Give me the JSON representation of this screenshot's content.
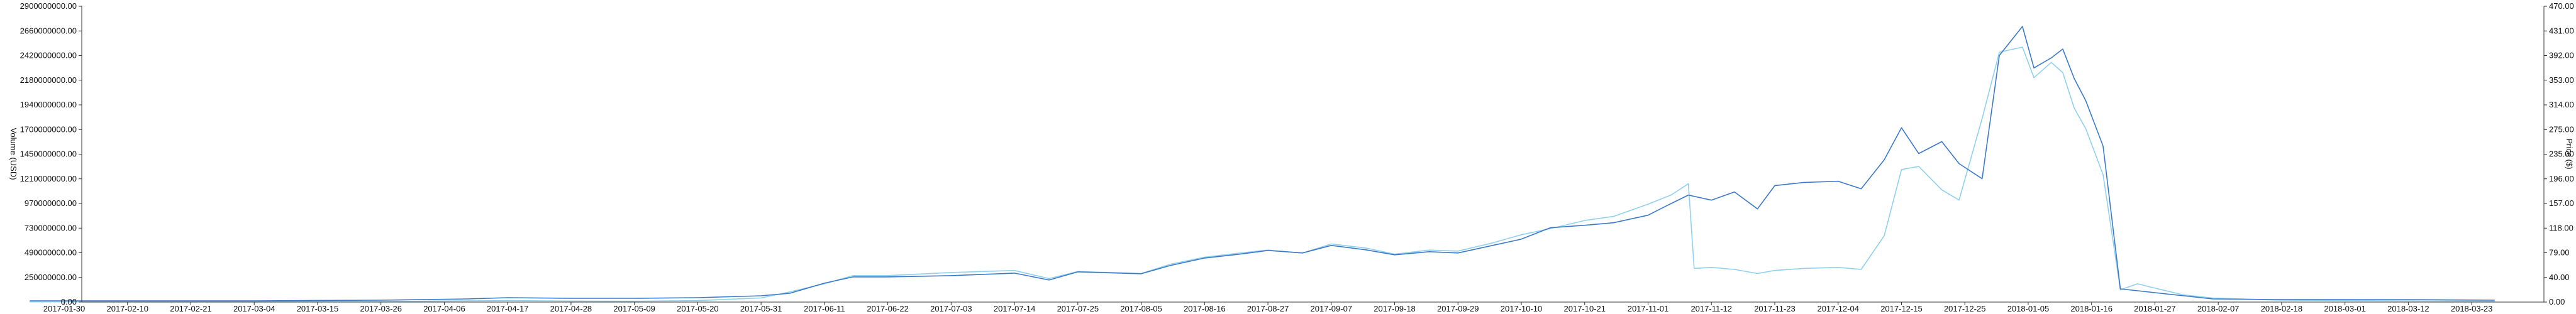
{
  "chart_data": {
    "type": "line",
    "xlabel": "",
    "y_left_label": "Volume (USD)",
    "y_right_label": "Price ($)",
    "x_tick_labels": [
      "2017-01-30",
      "2017-02-10",
      "2017-02-21",
      "2017-03-04",
      "2017-03-15",
      "2017-03-26",
      "2017-04-06",
      "2017-04-17",
      "2017-04-28",
      "2017-05-09",
      "2017-05-20",
      "2017-05-31",
      "2017-06-11",
      "2017-06-22",
      "2017-07-03",
      "2017-07-14",
      "2017-07-25",
      "2017-08-05",
      "2017-08-16",
      "2017-08-27",
      "2017-09-07",
      "2017-09-18",
      "2017-09-29",
      "2017-10-10",
      "2017-10-21",
      "2017-11-01",
      "2017-11-12",
      "2017-11-23",
      "2017-12-04",
      "2017-12-15",
      "2017-12-25",
      "2018-01-05",
      "2018-01-16",
      "2018-01-27",
      "2018-02-07",
      "2018-02-18",
      "2018-03-01",
      "2018-03-12",
      "2018-03-23"
    ],
    "y_left_ticks": [
      "0.00",
      "250000000.00",
      "490000000.00",
      "730000000.00",
      "970000000.00",
      "1210000000.00",
      "1450000000.00",
      "1700000000.00",
      "1940000000.00",
      "2180000000.00",
      "2420000000.00",
      "2660000000.00",
      "2900000000.00"
    ],
    "y_right_ticks": [
      "0.00",
      "40.00",
      "79.00",
      "118.00",
      "157.00",
      "196.00",
      "235.00",
      "275.00",
      "314.00",
      "353.00",
      "392.00",
      "431.00",
      "470.00"
    ],
    "y_left_range": [
      0,
      2900000000
    ],
    "y_right_range": [
      0,
      470
    ],
    "grid": false,
    "legend": "none",
    "series": [
      {
        "axis": "right",
        "color": "#3a78c8",
        "points": [
          [
            "2017-01-24",
            2
          ],
          [
            "2017-02-10",
            2
          ],
          [
            "2017-03-04",
            2
          ],
          [
            "2017-03-26",
            3
          ],
          [
            "2017-04-10",
            5
          ],
          [
            "2017-04-17",
            7
          ],
          [
            "2017-04-28",
            6
          ],
          [
            "2017-05-09",
            6
          ],
          [
            "2017-05-20",
            7
          ],
          [
            "2017-05-31",
            10
          ],
          [
            "2017-06-05",
            14
          ],
          [
            "2017-06-11",
            30
          ],
          [
            "2017-06-16",
            40
          ],
          [
            "2017-06-22",
            40
          ],
          [
            "2017-07-03",
            42
          ],
          [
            "2017-07-14",
            46
          ],
          [
            "2017-07-20",
            35
          ],
          [
            "2017-07-25",
            48
          ],
          [
            "2017-08-05",
            45
          ],
          [
            "2017-08-10",
            58
          ],
          [
            "2017-08-16",
            70
          ],
          [
            "2017-08-22",
            76
          ],
          [
            "2017-08-27",
            82
          ],
          [
            "2017-09-02",
            78
          ],
          [
            "2017-09-07",
            90
          ],
          [
            "2017-09-13",
            83
          ],
          [
            "2017-09-18",
            75
          ],
          [
            "2017-09-24",
            80
          ],
          [
            "2017-09-29",
            78
          ],
          [
            "2017-10-05",
            90
          ],
          [
            "2017-10-10",
            100
          ],
          [
            "2017-10-15",
            118
          ],
          [
            "2017-10-21",
            122
          ],
          [
            "2017-10-26",
            126
          ],
          [
            "2017-11-01",
            138
          ],
          [
            "2017-11-04",
            152
          ],
          [
            "2017-11-08",
            170
          ],
          [
            "2017-11-12",
            162
          ],
          [
            "2017-11-16",
            175
          ],
          [
            "2017-11-20",
            148
          ],
          [
            "2017-11-23",
            185
          ],
          [
            "2017-11-28",
            190
          ],
          [
            "2017-12-04",
            192
          ],
          [
            "2017-12-08",
            180
          ],
          [
            "2017-12-12",
            226
          ],
          [
            "2017-12-15",
            277
          ],
          [
            "2017-12-18",
            236
          ],
          [
            "2017-12-22",
            255
          ],
          [
            "2017-12-25",
            220
          ],
          [
            "2017-12-29",
            196
          ],
          [
            "2018-01-01",
            392
          ],
          [
            "2018-01-05",
            438
          ],
          [
            "2018-01-07",
            372
          ],
          [
            "2018-01-10",
            388
          ],
          [
            "2018-01-12",
            402
          ],
          [
            "2018-01-14",
            355
          ],
          [
            "2018-01-16",
            320
          ],
          [
            "2018-01-19",
            248
          ],
          [
            "2018-01-22",
            21
          ],
          [
            "2018-01-27",
            16
          ],
          [
            "2018-02-02",
            10
          ],
          [
            "2018-02-07",
            5
          ],
          [
            "2018-02-18",
            4
          ],
          [
            "2018-03-01",
            4
          ],
          [
            "2018-03-12",
            4
          ],
          [
            "2018-03-28",
            3
          ]
        ]
      },
      {
        "axis": "left",
        "color": "#8fd0ee",
        "points": [
          [
            "2017-01-24",
            2000000
          ],
          [
            "2017-02-10",
            3000000
          ],
          [
            "2017-03-04",
            3000000
          ],
          [
            "2017-03-26",
            5000000
          ],
          [
            "2017-04-17",
            15000000
          ],
          [
            "2017-04-28",
            10000000
          ],
          [
            "2017-05-09",
            8000000
          ],
          [
            "2017-05-20",
            15000000
          ],
          [
            "2017-05-31",
            40000000
          ],
          [
            "2017-06-05",
            100000000
          ],
          [
            "2017-06-11",
            180000000
          ],
          [
            "2017-06-16",
            260000000
          ],
          [
            "2017-06-22",
            260000000
          ],
          [
            "2017-07-03",
            290000000
          ],
          [
            "2017-07-14",
            310000000
          ],
          [
            "2017-07-20",
            230000000
          ],
          [
            "2017-07-25",
            300000000
          ],
          [
            "2017-08-05",
            280000000
          ],
          [
            "2017-08-10",
            370000000
          ],
          [
            "2017-08-16",
            440000000
          ],
          [
            "2017-08-22",
            480000000
          ],
          [
            "2017-08-27",
            510000000
          ],
          [
            "2017-09-02",
            480000000
          ],
          [
            "2017-09-07",
            570000000
          ],
          [
            "2017-09-13",
            530000000
          ],
          [
            "2017-09-18",
            470000000
          ],
          [
            "2017-09-24",
            510000000
          ],
          [
            "2017-09-29",
            500000000
          ],
          [
            "2017-10-05",
            580000000
          ],
          [
            "2017-10-10",
            660000000
          ],
          [
            "2017-10-15",
            720000000
          ],
          [
            "2017-10-21",
            800000000
          ],
          [
            "2017-10-26",
            840000000
          ],
          [
            "2017-11-01",
            960000000
          ],
          [
            "2017-11-05",
            1050000000
          ],
          [
            "2017-11-08",
            1160000000
          ],
          [
            "2017-11-09",
            330000000
          ],
          [
            "2017-11-12",
            340000000
          ],
          [
            "2017-11-16",
            320000000
          ],
          [
            "2017-11-20",
            280000000
          ],
          [
            "2017-11-23",
            310000000
          ],
          [
            "2017-11-28",
            330000000
          ],
          [
            "2017-12-04",
            340000000
          ],
          [
            "2017-12-08",
            320000000
          ],
          [
            "2017-12-12",
            650000000
          ],
          [
            "2017-12-15",
            1300000000
          ],
          [
            "2017-12-18",
            1330000000
          ],
          [
            "2017-12-22",
            1100000000
          ],
          [
            "2017-12-25",
            1000000000
          ],
          [
            "2017-12-29",
            1800000000
          ],
          [
            "2018-01-01",
            2450000000
          ],
          [
            "2018-01-05",
            2500000000
          ],
          [
            "2018-01-07",
            2200000000
          ],
          [
            "2018-01-10",
            2350000000
          ],
          [
            "2018-01-12",
            2250000000
          ],
          [
            "2018-01-14",
            1900000000
          ],
          [
            "2018-01-16",
            1700000000
          ],
          [
            "2018-01-19",
            1250000000
          ],
          [
            "2018-01-22",
            120000000
          ],
          [
            "2018-01-25",
            180000000
          ],
          [
            "2018-01-27",
            150000000
          ],
          [
            "2018-02-02",
            70000000
          ],
          [
            "2018-02-07",
            40000000
          ],
          [
            "2018-02-18",
            20000000
          ],
          [
            "2018-03-01",
            15000000
          ],
          [
            "2018-03-12",
            12000000
          ],
          [
            "2018-03-28",
            8000000
          ]
        ]
      }
    ]
  }
}
